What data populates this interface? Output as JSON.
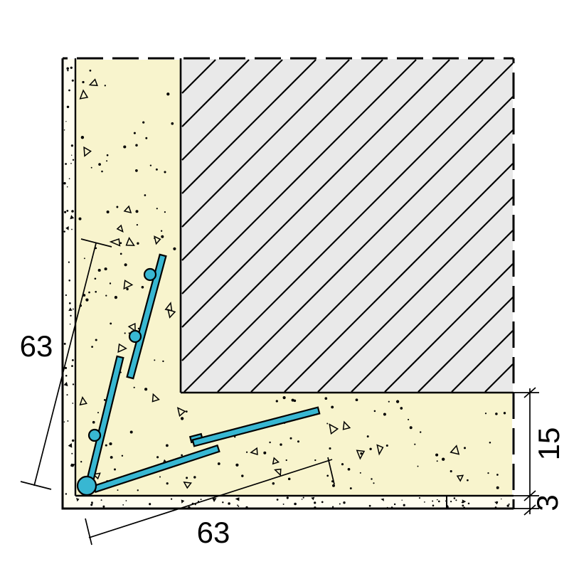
{
  "drawing": {
    "title": "corner-profile-section-detail",
    "dimensions": {
      "left_leg": "63",
      "bottom_leg": "63",
      "base_coat_thickness": "15",
      "finish_coat_thickness": "3"
    }
  },
  "colors": {
    "background": "#ffffff",
    "line": "#000000",
    "wall_fill": "#e9e9e9",
    "base_coat_fill": "#f8f4cd",
    "finish_coat_fill": "#fffdf0",
    "profile_fill": "#38b7d2"
  }
}
